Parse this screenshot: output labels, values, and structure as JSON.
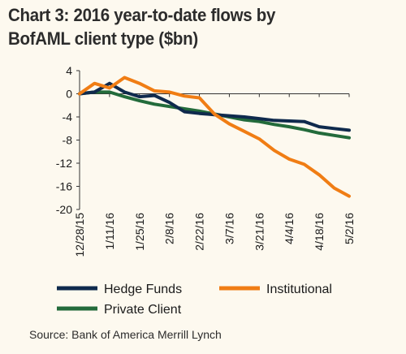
{
  "chart_data": {
    "type": "line",
    "title": "Chart 3: 2016 year-to-date flows by BofAML client type ($bn)",
    "source": "Source: Bank of America Merrill Lynch",
    "x": [
      "12/28/15",
      "1/4/16",
      "1/11/16",
      "1/18/16",
      "1/25/16",
      "2/1/16",
      "2/8/16",
      "2/15/16",
      "2/22/16",
      "2/29/16",
      "3/7/16",
      "3/14/16",
      "3/21/16",
      "3/28/16",
      "4/4/16",
      "4/11/16",
      "4/18/16",
      "4/25/16",
      "5/2/16"
    ],
    "x_tick_labels": [
      "12/28/15",
      "1/11/16",
      "1/25/16",
      "2/8/16",
      "2/22/16",
      "3/7/16",
      "3/21/16",
      "4/4/16",
      "4/18/16",
      "5/2/16"
    ],
    "ylim": [
      -20,
      4
    ],
    "y_ticks": [
      4,
      0,
      -4,
      -8,
      -12,
      -16,
      -20
    ],
    "grid": false,
    "legend_position": "bottom",
    "series": [
      {
        "name": "Hedge Funds",
        "color": "#0f2a4d",
        "values": [
          0,
          0.3,
          1.8,
          0.3,
          -0.5,
          -0.3,
          -1.5,
          -3.1,
          -3.4,
          -3.6,
          -3.8,
          -4.0,
          -4.3,
          -4.6,
          -4.7,
          -4.8,
          -5.7,
          -6.0,
          -6.3
        ]
      },
      {
        "name": "Institutional",
        "color": "#f07d14",
        "values": [
          0,
          1.8,
          1.0,
          2.8,
          1.8,
          0.5,
          0.3,
          -0.4,
          -0.7,
          -3.5,
          -5.2,
          -6.5,
          -7.8,
          -9.8,
          -11.3,
          -12.2,
          -14.0,
          -16.3,
          -17.7
        ]
      },
      {
        "name": "Private Client",
        "color": "#236b3b",
        "values": [
          0,
          0.3,
          0.3,
          -0.5,
          -1.2,
          -1.8,
          -2.2,
          -2.6,
          -3.0,
          -3.5,
          -4.0,
          -4.5,
          -4.8,
          -5.3,
          -5.7,
          -6.2,
          -6.8,
          -7.2,
          -7.6
        ]
      }
    ]
  }
}
